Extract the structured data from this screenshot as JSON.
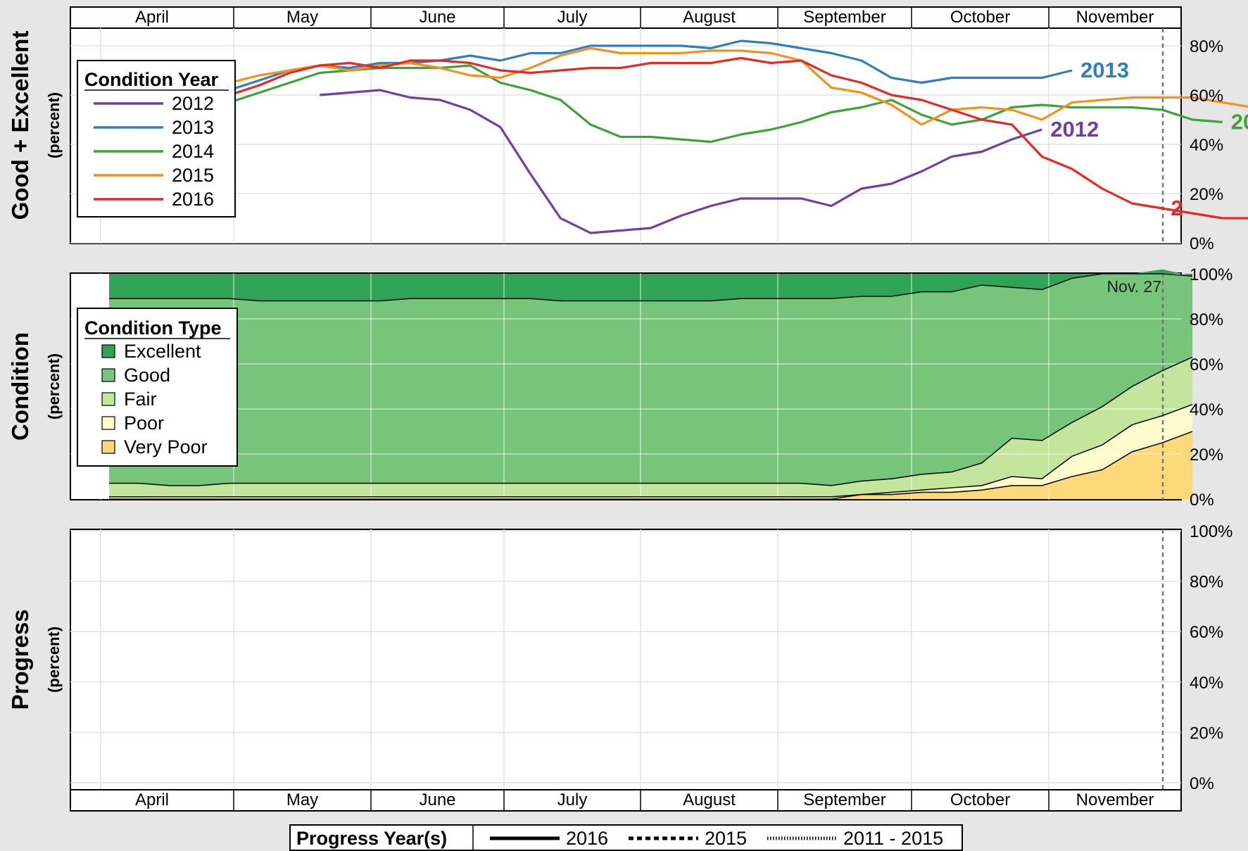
{
  "months": [
    "April",
    "May",
    "June",
    "July",
    "August",
    "September",
    "October",
    "November"
  ],
  "colors": {
    "y2012": "#6f3fa5",
    "y2013": "#2f7fbf",
    "y2014": "#3da336",
    "y2015": "#f5901e",
    "y2016": "#e52a24",
    "excellent": "#2fa457",
    "good": "#77c57a",
    "fair": "#c4e59c",
    "poor": "#fefccc",
    "very_poor": "#fdd97a"
  },
  "panels": {
    "good_excellent": {
      "ylabel": "Good + Excellent",
      "ylabel_sub": "(percent)",
      "yticks": [
        "0%",
        "20%",
        "40%",
        "60%",
        "80%"
      ]
    },
    "condition": {
      "ylabel": "Condition",
      "ylabel_sub": "(percent)",
      "yticks": [
        "0%",
        "20%",
        "40%",
        "60%",
        "80%",
        "100%"
      ],
      "annotation": "Nov. 27"
    },
    "progress": {
      "ylabel": "Progress",
      "ylabel_sub": "(percent)",
      "yticks": [
        "0%",
        "20%",
        "40%",
        "60%",
        "80%",
        "100%"
      ]
    }
  },
  "legend_year": {
    "title": "Condition Year",
    "items": [
      "2012",
      "2013",
      "2014",
      "2015",
      "2016"
    ]
  },
  "legend_type": {
    "title": "Condition Type",
    "items": [
      "Excellent",
      "Good",
      "Fair",
      "Poor",
      "Very Poor"
    ]
  },
  "legend_progress": {
    "title": "Progress Year(s)",
    "items": [
      "2016",
      "2015",
      "2011 - 2015"
    ]
  },
  "end_labels": {
    "y2012": "2012",
    "y2013": "2013",
    "y2014": "20",
    "y2016": "2"
  },
  "chart_data": [
    {
      "type": "line",
      "ylabel": "Good + Excellent",
      "ylim": [
        0,
        88
      ],
      "x_unit": "week of season (0 = early April)",
      "series": [
        {
          "name": "2012",
          "x": [
            7,
            8,
            9,
            10,
            11,
            12,
            13,
            14,
            15,
            16,
            17,
            18,
            19,
            20,
            21,
            22,
            23,
            24,
            25,
            26,
            27,
            28,
            29,
            30,
            31
          ],
          "values": [
            60,
            61,
            62,
            59,
            58,
            54,
            47,
            28,
            10,
            4,
            5,
            6,
            11,
            15,
            18,
            18,
            18,
            15,
            22,
            24,
            29,
            35,
            37,
            42,
            46
          ]
        },
        {
          "name": "2013",
          "x": [
            4,
            5,
            6,
            7,
            8,
            9,
            10,
            11,
            12,
            13,
            14,
            15,
            16,
            17,
            18,
            19,
            20,
            21,
            22,
            23,
            24,
            25,
            26,
            27,
            28,
            29,
            30,
            31,
            32
          ],
          "values": [
            62,
            66,
            70,
            72,
            71,
            73,
            73,
            74,
            76,
            74,
            77,
            77,
            80,
            80,
            80,
            80,
            79,
            82,
            81,
            79,
            77,
            74,
            67,
            65,
            67,
            67,
            67,
            67,
            70
          ]
        },
        {
          "name": "2014",
          "x": [
            4,
            5,
            6,
            7,
            8,
            9,
            10,
            11,
            12,
            13,
            14,
            15,
            16,
            17,
            18,
            19,
            20,
            21,
            22,
            23,
            24,
            25,
            26,
            27,
            28,
            29,
            30,
            31,
            32,
            33,
            34,
            35,
            36,
            37
          ],
          "values": [
            57,
            61,
            65,
            69,
            70,
            71,
            71,
            71,
            72,
            65,
            62,
            58,
            48,
            43,
            43,
            42,
            41,
            44,
            46,
            49,
            53,
            55,
            58,
            52,
            48,
            50,
            55,
            56,
            55,
            55,
            55,
            54,
            50,
            49
          ]
        },
        {
          "name": "2015",
          "x": [
            4,
            5,
            6,
            7,
            8,
            9,
            10,
            11,
            12,
            13,
            14,
            15,
            16,
            17,
            18,
            19,
            20,
            21,
            22,
            23,
            24,
            25,
            26,
            27,
            28,
            29,
            30,
            31,
            32,
            33,
            34,
            35,
            36,
            37,
            38
          ],
          "values": [
            65,
            68,
            70,
            72,
            70,
            72,
            73,
            71,
            68,
            67,
            71,
            76,
            79,
            77,
            77,
            77,
            78,
            78,
            77,
            74,
            63,
            61,
            56,
            48,
            54,
            55,
            54,
            50,
            57,
            58,
            59,
            59,
            59,
            57,
            55
          ]
        },
        {
          "name": "2016",
          "x": [
            4,
            5,
            6,
            7,
            8,
            9,
            10,
            11,
            12,
            13,
            14,
            15,
            16,
            17,
            18,
            19,
            20,
            21,
            22,
            23,
            24,
            25,
            26,
            27,
            28,
            29,
            30,
            31,
            32,
            33,
            34,
            35,
            36,
            37,
            38
          ],
          "values": [
            60,
            64,
            69,
            72,
            73,
            71,
            74,
            74,
            73,
            70,
            69,
            70,
            71,
            71,
            73,
            73,
            73,
            75,
            73,
            74,
            68,
            65,
            60,
            58,
            54,
            50,
            48,
            35,
            30,
            22,
            16,
            14,
            12,
            10,
            10
          ]
        }
      ]
    },
    {
      "type": "area",
      "stacked": true,
      "ylabel": "Condition",
      "ylim": [
        0,
        100
      ],
      "x_unit": "week of season (0 = early April)",
      "x": [
        0,
        1,
        2,
        3,
        4,
        5,
        6,
        7,
        8,
        9,
        10,
        11,
        12,
        13,
        14,
        15,
        16,
        17,
        18,
        19,
        20,
        21,
        22,
        23,
        24,
        25,
        26,
        27,
        28,
        29,
        30,
        31,
        32,
        33,
        34,
        35,
        36
      ],
      "series": [
        {
          "name": "Very Poor",
          "values": [
            0,
            0,
            0,
            0,
            0,
            0,
            0,
            0,
            0,
            0,
            0,
            0,
            0,
            0,
            0,
            0,
            0,
            0,
            0,
            0,
            0,
            0,
            0,
            0,
            0,
            2,
            2,
            3,
            3,
            4,
            6,
            6,
            10,
            13,
            21,
            25,
            30
          ]
        },
        {
          "name": "Poor",
          "values": [
            1,
            1,
            1,
            1,
            1,
            1,
            1,
            1,
            1,
            1,
            1,
            1,
            1,
            1,
            1,
            1,
            1,
            1,
            1,
            1,
            1,
            1,
            1,
            1,
            1,
            0,
            1,
            1,
            2,
            2,
            4,
            3,
            9,
            11,
            12,
            12,
            12
          ]
        },
        {
          "name": "Fair",
          "values": [
            6,
            6,
            5,
            5,
            6,
            6,
            6,
            6,
            6,
            6,
            6,
            6,
            6,
            6,
            6,
            6,
            6,
            6,
            6,
            6,
            6,
            6,
            6,
            6,
            5,
            6,
            6,
            7,
            7,
            10,
            17,
            17,
            15,
            17,
            17,
            20,
            21
          ]
        },
        {
          "name": "Good",
          "values": [
            82,
            82,
            83,
            83,
            82,
            81,
            81,
            81,
            81,
            81,
            82,
            82,
            82,
            82,
            82,
            81,
            81,
            81,
            81,
            81,
            81,
            82,
            82,
            82,
            83,
            82,
            81,
            81,
            80,
            79,
            67,
            67,
            64,
            59,
            50,
            45,
            36
          ]
        },
        {
          "name": "Excellent",
          "values": [
            11,
            11,
            11,
            11,
            11,
            12,
            12,
            12,
            12,
            12,
            11,
            11,
            11,
            11,
            11,
            12,
            12,
            12,
            12,
            12,
            12,
            11,
            11,
            11,
            11,
            10,
            10,
            8,
            8,
            5,
            6,
            7,
            2,
            0,
            0,
            0,
            1
          ]
        }
      ]
    },
    {
      "type": "line",
      "ylabel": "Progress",
      "ylim": [
        0,
        100
      ],
      "series": []
    }
  ]
}
